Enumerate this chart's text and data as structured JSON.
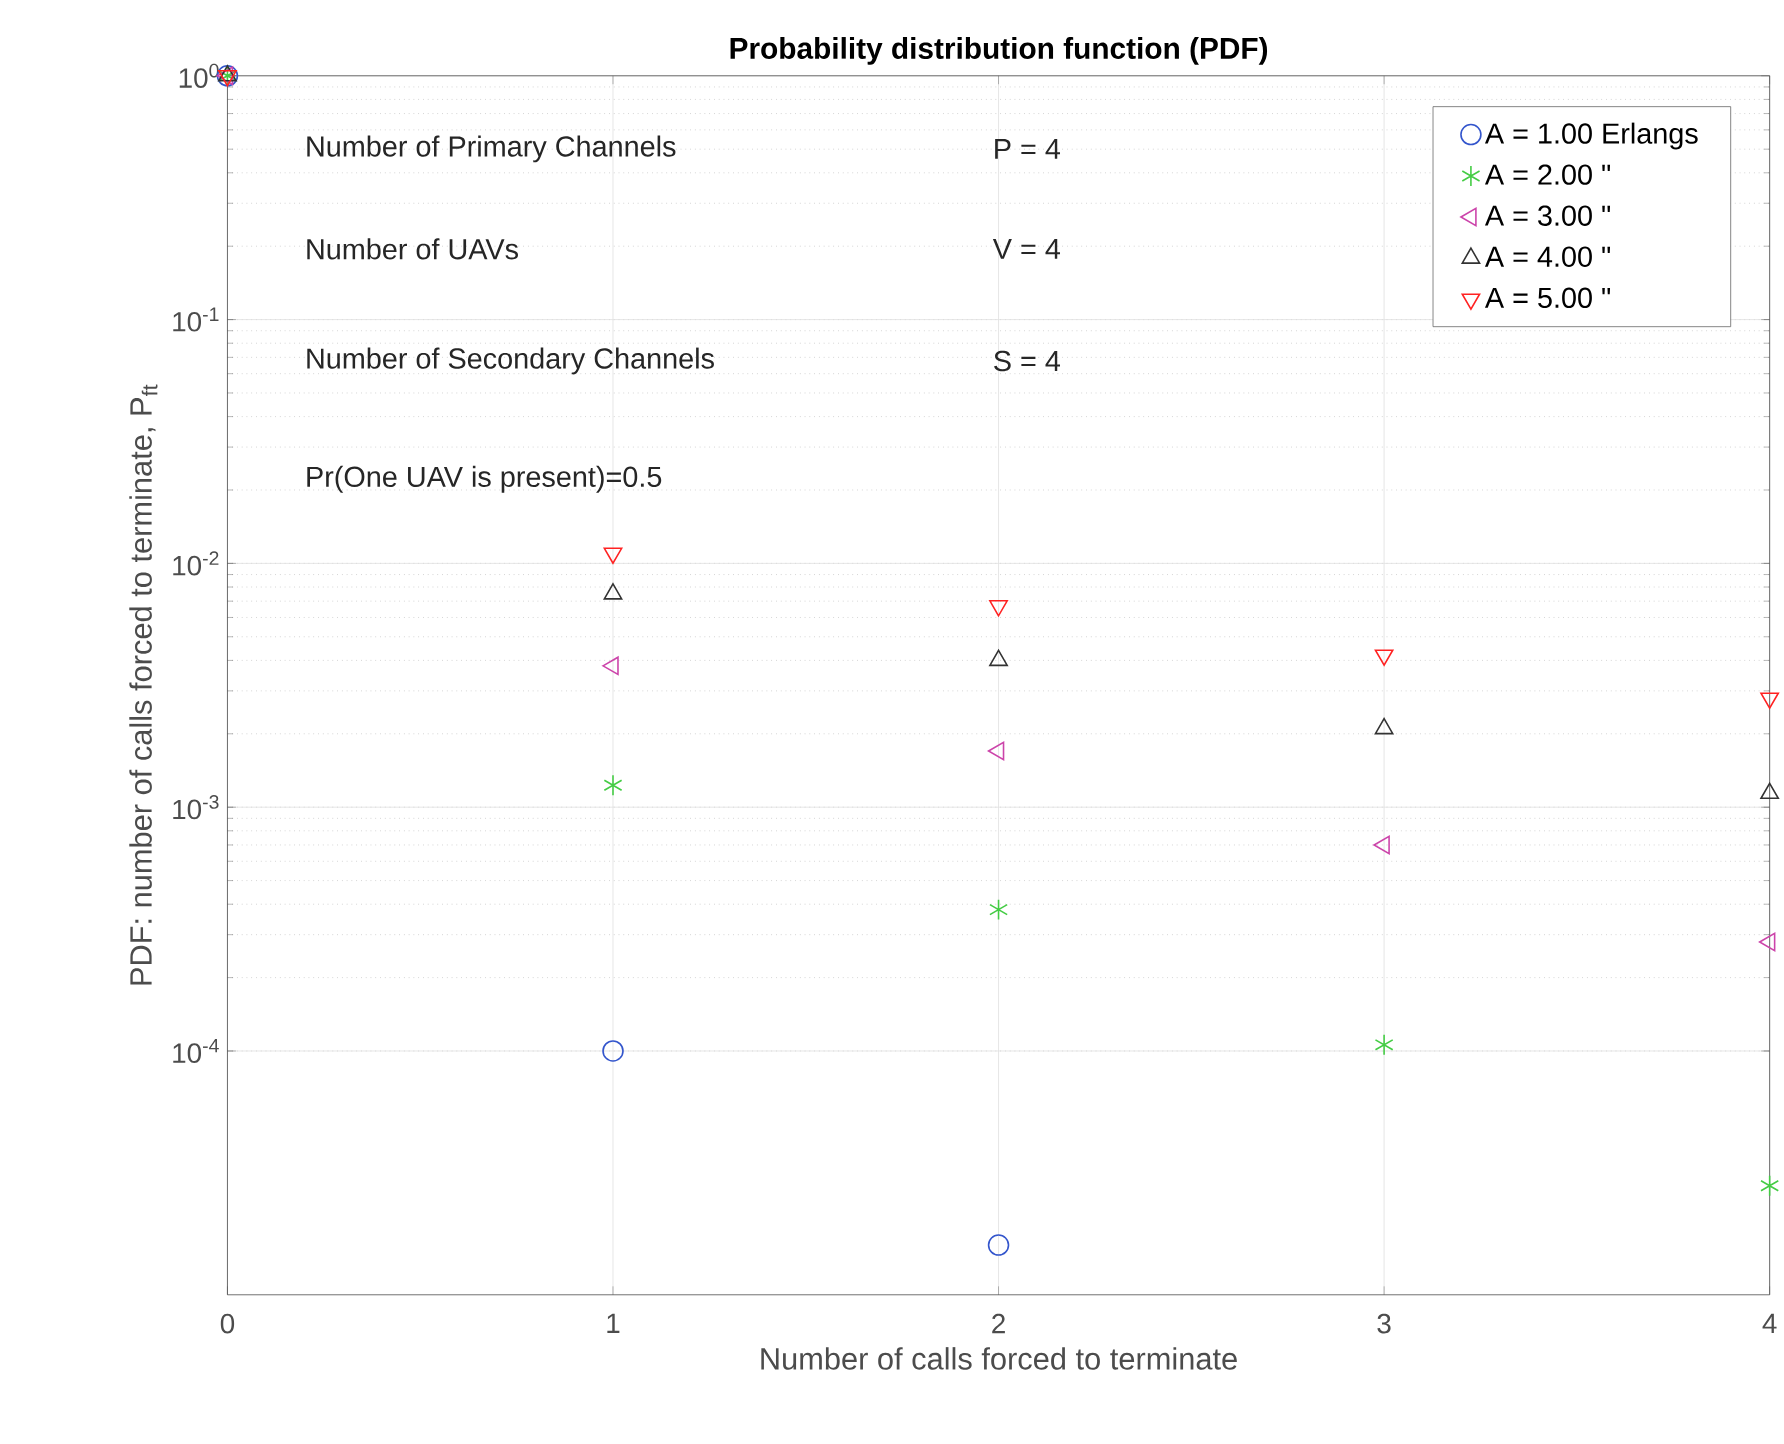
{
  "chart_data": {
    "type": "scatter",
    "title": "Probability distribution function (PDF)",
    "xlabel": "Number of calls forced to terminate",
    "ylabel": "PDF: number of calls forced to terminate, P$_{ft}$",
    "x": [
      0,
      1,
      2,
      3,
      4
    ],
    "series": [
      {
        "name": "A =  1.00 Erlangs",
        "color": "#3355cc",
        "marker": "circle",
        "values": [
          1,
          0.0001,
          1.6e-05,
          null,
          null
        ]
      },
      {
        "name": "A =  2.00     \"",
        "color": "#44cc44",
        "marker": "cross",
        "values": [
          1,
          0.00123,
          0.00038,
          0.000106,
          2.8e-05
        ]
      },
      {
        "name": "A =  3.00     \"",
        "color": "#cc44aa",
        "marker": "triangle-left",
        "values": [
          1,
          0.0038,
          0.0017,
          0.0007,
          0.00028
        ]
      },
      {
        "name": "A =  4.00     \"",
        "color": "#333333",
        "marker": "triangle",
        "values": [
          1,
          0.0075,
          0.004,
          0.0021,
          0.00114
        ]
      },
      {
        "name": "A =  5.00     \"",
        "color": "#ff2222",
        "marker": "triangle-down",
        "values": [
          1,
          0.011,
          0.0067,
          0.0042,
          0.0028
        ]
      }
    ],
    "xlim": [
      0,
      4
    ],
    "xticks": [
      0,
      1,
      2,
      3,
      4
    ],
    "ylim": [
      1e-05,
      1
    ],
    "yticks": [
      {
        "value": 0.0001,
        "label": "10$^{-4}$"
      },
      {
        "value": 0.001,
        "label": "10$^{-3}$"
      },
      {
        "value": 0.01,
        "label": "10$^{-2}$"
      },
      {
        "value": 0.1,
        "label": "10$^{-1}$"
      },
      {
        "value": 1,
        "label": "10$^{0}$"
      }
    ],
    "log": "y",
    "grid": true,
    "legend": "top right",
    "annotations": [
      "Number of Primary Channels",
      "P = 4",
      "Number of UAVs",
      "V = 4",
      "Number of Secondary Channels",
      "S = 4",
      "Pr(One UAV is present)=0.5"
    ]
  }
}
